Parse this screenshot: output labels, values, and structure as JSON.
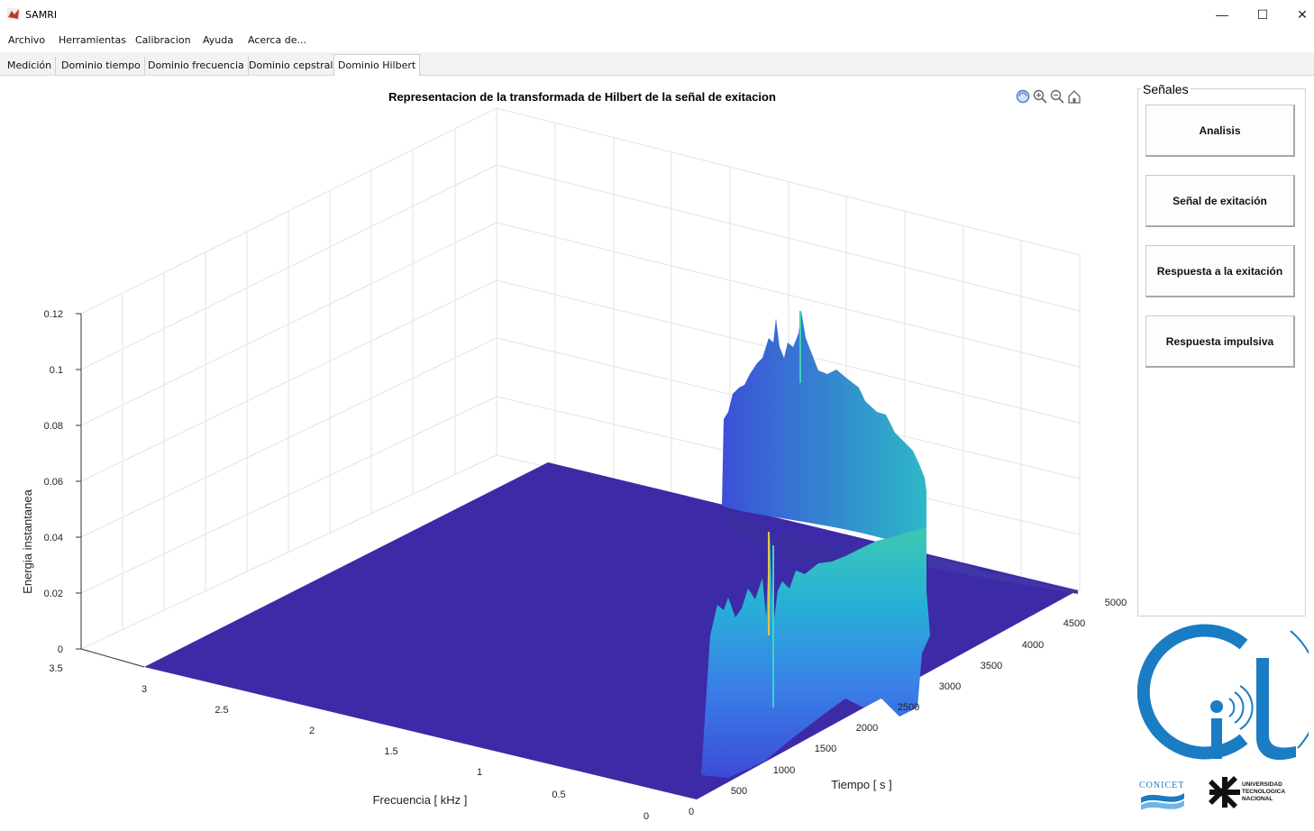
{
  "window": {
    "title": "SAMRI",
    "minimize": "—",
    "maximize": "☐",
    "close": "✕"
  },
  "menu": [
    "Archivo",
    "Herramientas",
    "Calibracion",
    "Ayuda",
    "Acerca de..."
  ],
  "tabs": [
    {
      "label": "Medición",
      "active": false
    },
    {
      "label": "Dominio tiempo",
      "active": false
    },
    {
      "label": "Dominio frecuencia",
      "active": false
    },
    {
      "label": "Dominio cepstral",
      "active": false
    },
    {
      "label": "Dominio Hilbert",
      "active": true
    }
  ],
  "plot": {
    "title": "Representacion de la transformada de Hilbert de la señal de exitacion",
    "zlabel": "Energia instantanea",
    "xlabel": "Frecuencia [ kHz ]",
    "ylabel": "Tiempo [ s ]",
    "ztick_labels": [
      "0",
      "0.02",
      "0.04",
      "0.06",
      "0.08",
      "0.1",
      "0.12"
    ],
    "freq_tick_labels": [
      "0",
      "0.5",
      "1",
      "1.5",
      "2",
      "2.5",
      "3",
      "3.5"
    ],
    "time_tick_labels": [
      "0",
      "500",
      "1000",
      "1500",
      "2000",
      "2500",
      "3000",
      "3500",
      "4000",
      "4500",
      "5000"
    ],
    "toolbar_icons": [
      "rotate-icon",
      "zoom-in-icon",
      "zoom-out-icon",
      "home-icon"
    ]
  },
  "chart_data": {
    "type": "surface",
    "title": "Representacion de la transformada de Hilbert de la señal de exitacion",
    "xlabel": "Frecuencia [ kHz ]",
    "ylabel": "Tiempo [ s ]",
    "zlabel": "Energia instantanea",
    "xlim": [
      0,
      3.5
    ],
    "ylim": [
      0,
      5000
    ],
    "zlim": [
      0,
      0.12
    ],
    "grid": true,
    "colormap": "parula",
    "base_color": "#3b27a0",
    "peak_value": 0.1
  },
  "panel": {
    "title": "Señales",
    "buttons": [
      "Analisis",
      "Señal de exitación",
      "Respuesta a la exitación",
      "Respuesta impulsiva"
    ]
  },
  "logo": {
    "letters": "it",
    "org1": "CONICET",
    "org2": "UNIVERSIDAD TECNOLOGICA NACIONAL"
  },
  "colors": {
    "surface_dark": "#3d2aa6",
    "surface_cyan": "#1fb7c4",
    "surface_blue": "#3f6ee6",
    "logo_blue": "#1a7cc2"
  }
}
